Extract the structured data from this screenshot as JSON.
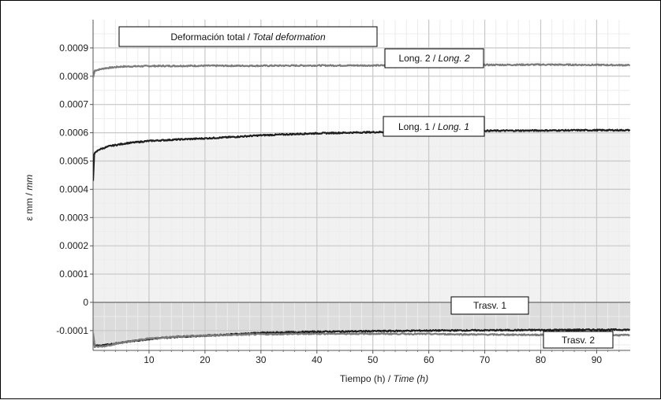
{
  "chart_data": {
    "type": "line",
    "title_regular": "Deformación total / ",
    "title_italic": "Total deformation",
    "xlabel_regular": "Tiempo (h) / ",
    "xlabel_italic": "Time (h)",
    "ylabel_regular": "ε mm / ",
    "ylabel_italic": "mm",
    "xlim": [
      0,
      96
    ],
    "ylim": [
      -0.00017,
      0.001
    ],
    "x_ticks": [
      10,
      20,
      30,
      40,
      50,
      60,
      70,
      80,
      90
    ],
    "y_ticks": [
      {
        "value": 0.0009,
        "label": "0.0009"
      },
      {
        "value": 0.0008,
        "label": "0.0008"
      },
      {
        "value": 0.0007,
        "label": "0.0007"
      },
      {
        "value": 0.0006,
        "label": "0.0006"
      },
      {
        "value": 0.0005,
        "label": "0.0005"
      },
      {
        "value": 0.0004,
        "label": "0.0004"
      },
      {
        "value": 0.0003,
        "label": "0.0003"
      },
      {
        "value": 0.0002,
        "label": "0.0002"
      },
      {
        "value": 0.0001,
        "label": "0.0001"
      },
      {
        "value": 0,
        "label": "0"
      },
      {
        "value": -0.0001,
        "label": "-0.0001"
      }
    ],
    "grid": true,
    "series": [
      {
        "name": "Long. 2 / Long. 2",
        "label_regular": "Long. 2 / ",
        "label_italic": "Long. 2",
        "color": "#7a7a7a",
        "x": [
          0,
          0.3,
          2,
          5,
          10,
          20,
          30,
          40,
          50,
          60,
          70,
          80,
          90,
          96
        ],
        "y": [
          0.000795,
          0.00082,
          0.000828,
          0.000834,
          0.000836,
          0.000837,
          0.000837,
          0.000838,
          0.000838,
          0.000839,
          0.00084,
          0.000841,
          0.00084,
          0.000839
        ]
      },
      {
        "name": "Long. 1 / Long. 1",
        "label_regular": "Long. 1 / ",
        "label_italic": "Long. 1",
        "color": "#1e1e1e",
        "x": [
          0,
          0.2,
          1,
          3,
          6,
          10,
          15,
          20,
          25,
          30,
          40,
          50,
          60,
          70,
          80,
          90,
          96
        ],
        "y": [
          0.00043,
          0.000525,
          0.00054,
          0.000553,
          0.000563,
          0.000571,
          0.000576,
          0.00058,
          0.000585,
          0.000591,
          0.000598,
          0.000602,
          0.000605,
          0.000607,
          0.000608,
          0.000609,
          0.000609
        ]
      },
      {
        "name": "Trasv. 1",
        "label_regular": "Trasv. 1",
        "label_italic": "",
        "color": "#1e1e1e",
        "x": [
          0,
          0.3,
          2,
          5,
          10,
          15,
          20,
          25,
          30,
          40,
          50,
          60,
          70,
          80,
          90,
          96
        ],
        "y": [
          -0.000115,
          -0.000153,
          -0.000152,
          -0.000142,
          -0.00013,
          -0.000122,
          -0.000118,
          -0.000113,
          -0.000108,
          -0.000104,
          -0.000102,
          -0.0001,
          -9.9e-05,
          -9.8e-05,
          -9.7e-05,
          -9.7e-05
        ]
      },
      {
        "name": "Trasv. 2",
        "label_regular": "Trasv. 2",
        "label_italic": "",
        "color": "#7a7a7a",
        "x": [
          0,
          0.3,
          2,
          5,
          10,
          15,
          20,
          25,
          30,
          40,
          50,
          60,
          70,
          80,
          90,
          96
        ],
        "y": [
          -0.000108,
          -0.000158,
          -0.000155,
          -0.000143,
          -0.000128,
          -0.000121,
          -0.000118,
          -0.000115,
          -0.000113,
          -0.000111,
          -0.000111,
          -0.000112,
          -0.000114,
          -0.000115,
          -0.000116,
          -0.000116
        ]
      }
    ]
  }
}
